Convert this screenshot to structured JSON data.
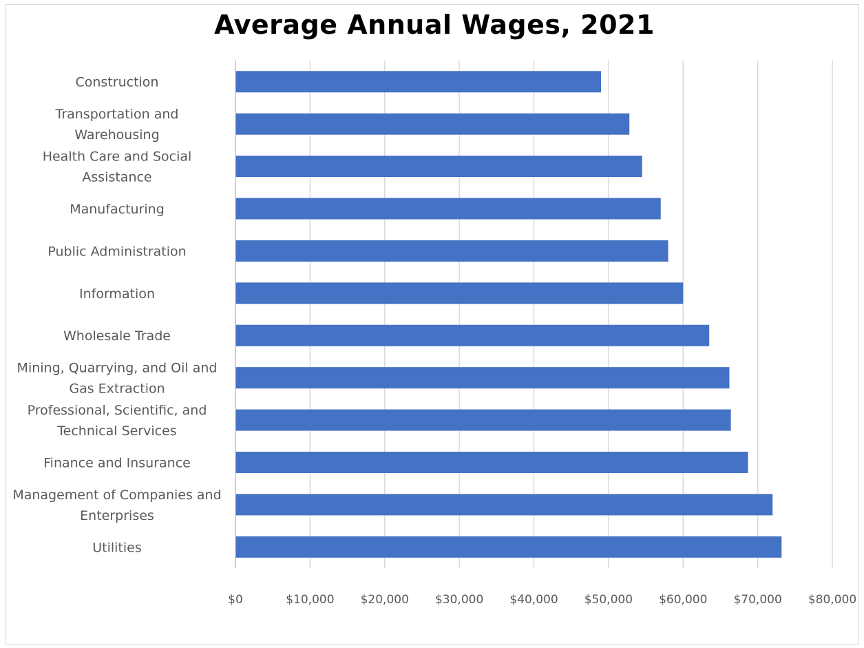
{
  "chart_data": {
    "type": "bar",
    "orientation": "horizontal",
    "title": "Average Annual Wages, 2021",
    "xlabel": "",
    "ylabel": "",
    "categories": [
      "Construction",
      "Transportation and Warehousing",
      "Health Care and Social Assistance",
      "Manufacturing",
      "Public Administration",
      "Information",
      "Wholesale Trade",
      "Mining, Quarrying, and Oil and Gas Extraction",
      "Professional, Scientific, and Technical Services",
      "Finance and Insurance",
      "Management of Companies and Enterprises",
      "Utilities"
    ],
    "category_label_lines": [
      [
        "Construction"
      ],
      [
        "Transportation and",
        "Warehousing"
      ],
      [
        "Health Care and Social",
        "Assistance"
      ],
      [
        "Manufacturing"
      ],
      [
        "Public Administration"
      ],
      [
        "Information"
      ],
      [
        "Wholesale Trade"
      ],
      [
        "Mining, Quarrying, and Oil and",
        "Gas Extraction"
      ],
      [
        "Professional, Scientific, and",
        "Technical Services"
      ],
      [
        "Finance and Insurance"
      ],
      [
        "Management of Companies and",
        "Enterprises"
      ],
      [
        "Utilities"
      ]
    ],
    "values": [
      49000,
      52800,
      54500,
      57000,
      58000,
      60000,
      63500,
      66200,
      66400,
      68700,
      72000,
      73200
    ],
    "xlim": [
      0,
      80000
    ],
    "xticks": [
      0,
      10000,
      20000,
      30000,
      40000,
      50000,
      60000,
      70000,
      80000
    ],
    "xtick_labels": [
      "$0",
      "$10,000",
      "$20,000",
      "$30,000",
      "$40,000",
      "$50,000",
      "$60,000",
      "$70,000",
      "$80,000"
    ],
    "grid": "vertical",
    "legend": "none",
    "bar_color": "#4472C4",
    "grid_color": "#D9D9D9",
    "axis_color": "#BFBFBF",
    "label_color": "#595959"
  }
}
